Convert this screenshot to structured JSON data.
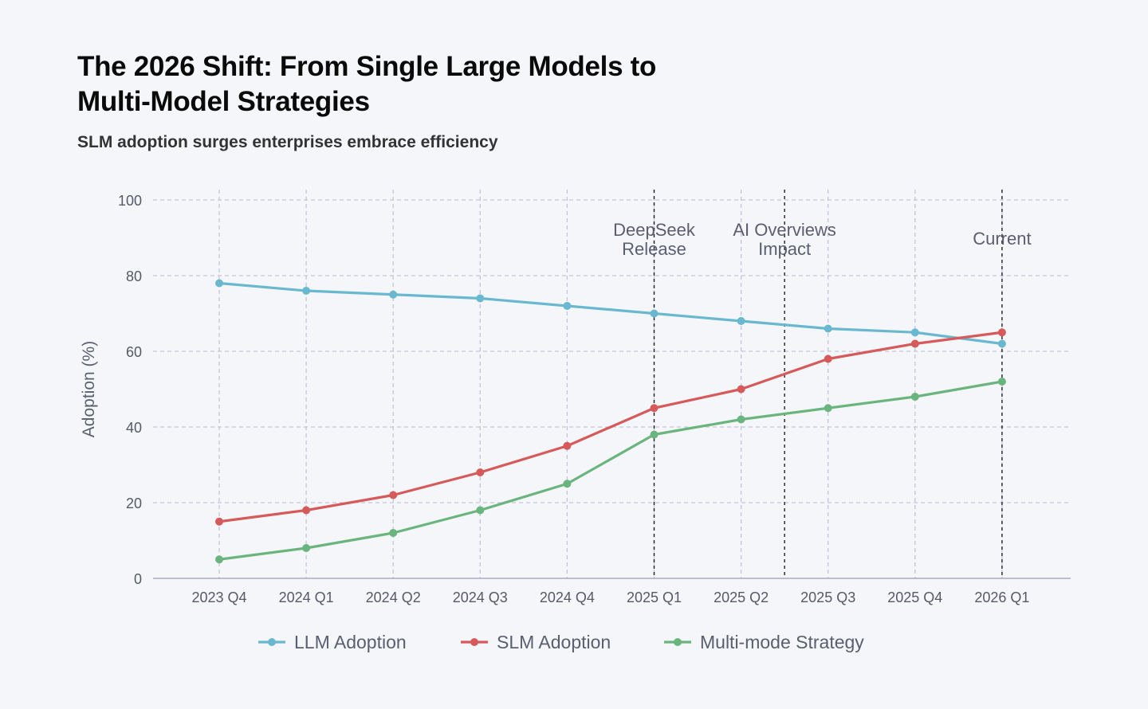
{
  "title": "The 2026 Shift: From Single Large Models to Multi-Model Strategies",
  "subtitle": "SLM adoption surges enterprises embrace efficiency",
  "chart_data": {
    "type": "line",
    "categories": [
      "2023 Q4",
      "2024 Q1",
      "2024 Q2",
      "2024 Q3",
      "2024 Q4",
      "2025 Q1",
      "2025 Q2",
      "2025 Q3",
      "2025 Q4",
      "2026 Q1"
    ],
    "series": [
      {
        "name": "LLM Adoption",
        "color": "#6ab8cf",
        "values": [
          78,
          76,
          75,
          74,
          72,
          70,
          68,
          66,
          65,
          62
        ]
      },
      {
        "name": "SLM Adoption",
        "color": "#d65a5a",
        "values": [
          15,
          18,
          22,
          28,
          35,
          45,
          50,
          58,
          62,
          65
        ]
      },
      {
        "name": "Multi-mode Strategy",
        "color": "#6ab57e",
        "values": [
          5,
          8,
          12,
          18,
          25,
          38,
          42,
          45,
          48,
          52
        ]
      }
    ],
    "ylabel": "Adoption (%)",
    "xlabel": "",
    "ylim": [
      0,
      100
    ],
    "yticks": [
      0,
      20,
      40,
      60,
      80,
      100
    ],
    "grid": true,
    "legend": "bottom",
    "annotations": [
      {
        "at": 5,
        "lines": [
          "DeepSeek",
          "Release"
        ]
      },
      {
        "at": 6.5,
        "lines": [
          "AI Overviews",
          "Impact"
        ]
      },
      {
        "at": 9,
        "lines": [
          "Current"
        ]
      }
    ]
  }
}
